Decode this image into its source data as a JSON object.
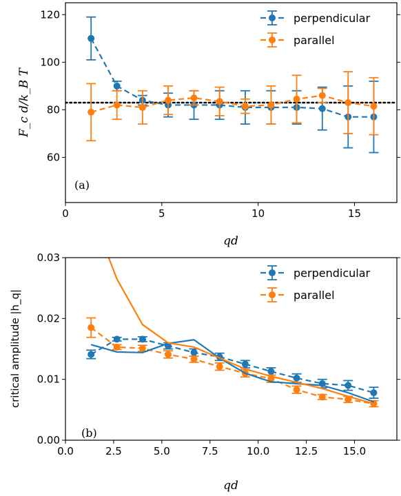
{
  "colors": {
    "perpendicular": "#1f77b4",
    "parallel": "#ff7f0e",
    "reference": "#000000"
  },
  "chart_data": [
    {
      "type": "line",
      "panel_label": "(a)",
      "xlabel": "qd",
      "ylabel": "F_c d/k_B T",
      "xlim": [
        0,
        17.2
      ],
      "ylim": [
        41,
        125
      ],
      "xticks": [
        0,
        5,
        10,
        15
      ],
      "xtick_labels": [
        "0",
        "5",
        "10",
        "15"
      ],
      "yticks": [
        60,
        80,
        100,
        120
      ],
      "ytick_labels": [
        "60",
        "80",
        "100",
        "120"
      ],
      "legend_position": "upper right",
      "reference_line": {
        "y": 83,
        "style": "dotted"
      },
      "series": [
        {
          "name": "perpendicular",
          "x": [
            1.33,
            2.67,
            4.0,
            5.33,
            6.67,
            8.0,
            9.33,
            10.67,
            12.0,
            13.33,
            14.67,
            16.0
          ],
          "y": [
            110,
            90,
            84,
            82,
            82,
            82,
            81,
            81,
            81,
            80.5,
            77,
            77
          ],
          "err": [
            9,
            2,
            2,
            5,
            6,
            6,
            7,
            7,
            7,
            9,
            13,
            15
          ]
        },
        {
          "name": "parallel",
          "x": [
            1.33,
            2.67,
            4.0,
            5.33,
            6.67,
            8.0,
            9.33,
            10.67,
            12.0,
            13.33,
            14.67,
            16.0
          ],
          "y": [
            79,
            82,
            81,
            84,
            85,
            83.5,
            81.5,
            82,
            84.5,
            86,
            83,
            81.5
          ],
          "err": [
            12,
            6,
            7,
            6,
            3,
            6,
            3,
            8,
            10,
            3,
            13,
            12
          ]
        }
      ]
    },
    {
      "type": "line",
      "panel_label": "(b)",
      "xlabel": "qd",
      "ylabel": "critical amplitude |h_q|",
      "xlim": [
        0,
        17.2
      ],
      "ylim": [
        0,
        0.03
      ],
      "xticks": [
        0,
        2.5,
        5,
        7.5,
        10,
        12.5,
        15
      ],
      "xtick_labels": [
        "0.0",
        "2.5",
        "5.0",
        "7.5",
        "10.0",
        "12.5",
        "15.0"
      ],
      "yticks": [
        0,
        0.01,
        0.02,
        0.03
      ],
      "ytick_labels": [
        "0.00",
        "0.01",
        "0.02",
        "0.03"
      ],
      "legend_position": "upper right",
      "series": [
        {
          "name": "perpendicular",
          "x": [
            1.33,
            2.67,
            4.0,
            5.33,
            6.67,
            8.0,
            9.33,
            10.67,
            12.0,
            13.33,
            14.67,
            16.0
          ],
          "y": [
            0.0141,
            0.0166,
            0.0166,
            0.0155,
            0.0144,
            0.0137,
            0.0125,
            0.0113,
            0.0102,
            0.0093,
            0.009,
            0.0078
          ],
          "err": [
            0.0007,
            0.0003,
            0.0004,
            0.0005,
            0.0006,
            0.0006,
            0.0006,
            0.0006,
            0.0007,
            0.0007,
            0.0008,
            0.0009
          ]
        },
        {
          "name": "parallel",
          "x": [
            1.33,
            2.67,
            4.0,
            5.33,
            6.67,
            8.0,
            9.33,
            10.67,
            12.0,
            13.33,
            14.67,
            16.0
          ],
          "y": [
            0.0185,
            0.0153,
            0.0151,
            0.0141,
            0.0133,
            0.0121,
            0.011,
            0.0101,
            0.0083,
            0.0071,
            0.0067,
            0.006
          ],
          "err": [
            0.0016,
            0.0004,
            0.0005,
            0.0006,
            0.0005,
            0.0006,
            0.0006,
            0.0006,
            0.0006,
            0.0004,
            0.0005,
            0.0005
          ]
        },
        {
          "name": "",
          "style": "solid",
          "color_key": "perpendicular",
          "x": [
            1.33,
            2.67,
            4.0,
            5.33,
            6.67,
            8.0,
            9.33,
            10.67,
            12.0,
            13.33,
            14.67,
            16.0
          ],
          "y": [
            0.0157,
            0.0145,
            0.0144,
            0.0159,
            0.0165,
            0.0135,
            0.011,
            0.0096,
            0.0093,
            0.009,
            0.0078,
            0.0063
          ]
        },
        {
          "name": "",
          "style": "solid",
          "color_key": "parallel",
          "x": [
            2.0,
            2.67,
            4.0,
            5.33,
            6.67,
            8.0,
            9.33,
            10.67,
            12.0,
            13.33,
            14.67,
            16.0
          ],
          "y": [
            0.032,
            0.0265,
            0.019,
            0.016,
            0.0153,
            0.0135,
            0.0117,
            0.0105,
            0.0095,
            0.0085,
            0.0072,
            0.006
          ]
        }
      ]
    }
  ]
}
